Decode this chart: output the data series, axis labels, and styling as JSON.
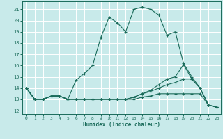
{
  "xlabel": "Humidex (Indice chaleur)",
  "bg_color": "#c8eaea",
  "grid_color": "#ffffff",
  "line_color": "#1a6b5a",
  "xlim": [
    -0.5,
    23.5
  ],
  "ylim": [
    11.7,
    21.7
  ],
  "xticks": [
    0,
    1,
    2,
    3,
    4,
    5,
    6,
    7,
    8,
    9,
    10,
    11,
    12,
    13,
    14,
    15,
    16,
    17,
    18,
    19,
    20,
    21,
    22,
    23
  ],
  "yticks": [
    12,
    13,
    14,
    15,
    16,
    17,
    18,
    19,
    20,
    21
  ],
  "series": [
    [
      14.0,
      13.0,
      13.0,
      13.3,
      13.3,
      13.0,
      14.7,
      15.3,
      16.0,
      18.5,
      20.3,
      19.8,
      19.0,
      21.0,
      21.2,
      21.0,
      20.5,
      18.7,
      19.0,
      16.2,
      15.0,
      14.0,
      12.5,
      12.3
    ],
    [
      14.0,
      13.0,
      13.0,
      13.3,
      13.3,
      13.0,
      13.0,
      13.0,
      13.0,
      13.0,
      13.0,
      13.0,
      13.0,
      13.2,
      13.5,
      13.8,
      14.3,
      14.8,
      15.0,
      16.1,
      14.8,
      14.0,
      12.5,
      12.3
    ],
    [
      14.0,
      13.0,
      13.0,
      13.3,
      13.3,
      13.0,
      13.0,
      13.0,
      13.0,
      13.0,
      13.0,
      13.0,
      13.0,
      13.2,
      13.5,
      13.7,
      14.0,
      14.3,
      14.5,
      14.8,
      14.8,
      14.0,
      12.5,
      12.3
    ],
    [
      14.0,
      13.0,
      13.0,
      13.3,
      13.3,
      13.0,
      13.0,
      13.0,
      13.0,
      13.0,
      13.0,
      13.0,
      13.0,
      13.0,
      13.2,
      13.3,
      13.5,
      13.5,
      13.5,
      13.5,
      13.5,
      13.5,
      12.5,
      12.3
    ]
  ]
}
